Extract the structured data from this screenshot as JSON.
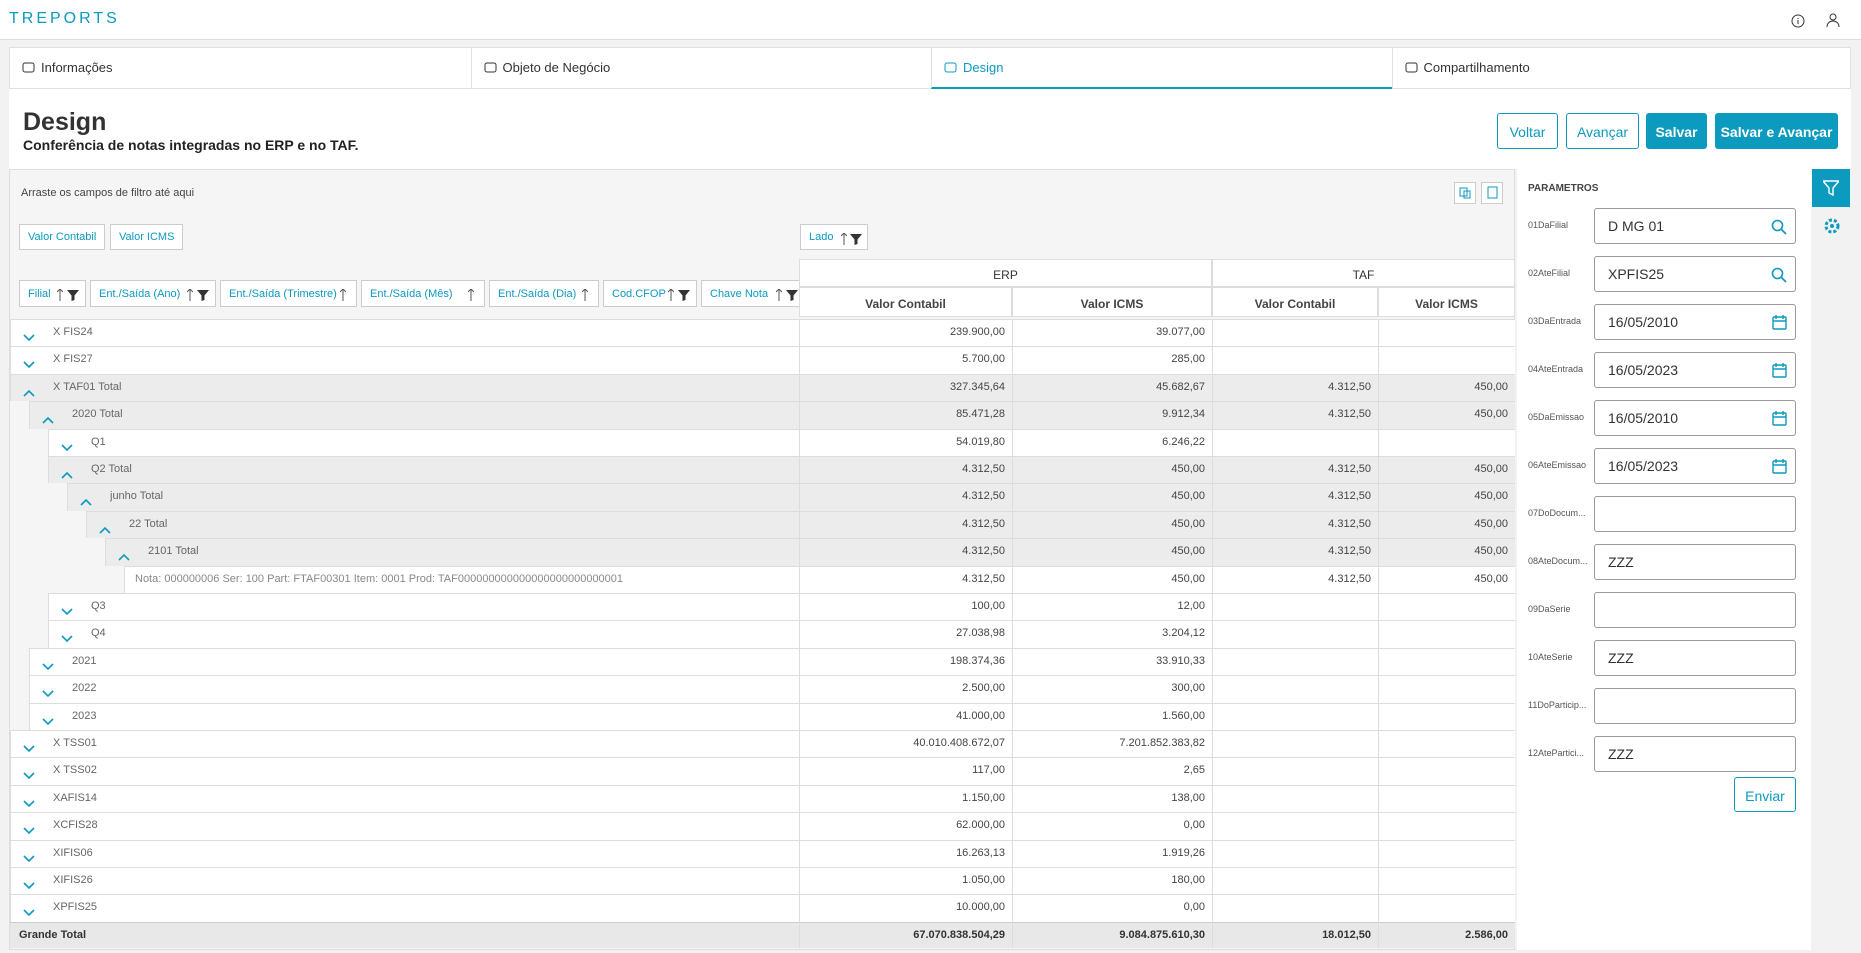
{
  "header": {
    "app_name": "TREPORTS"
  },
  "tabs": [
    {
      "label": "Informações",
      "active": false
    },
    {
      "label": "Objeto de Negócio",
      "active": false
    },
    {
      "label": "Design",
      "active": true
    },
    {
      "label": "Compartilhamento",
      "active": false
    }
  ],
  "page": {
    "title": "Design",
    "subtitle": "Conferência de notas integradas no ERP e no TAF."
  },
  "buttons": [
    {
      "label": "Voltar",
      "primary": false
    },
    {
      "label": "Avançar",
      "primary": false
    },
    {
      "label": "Salvar",
      "primary": true
    },
    {
      "label": "Salvar e Avançar",
      "primary": true
    }
  ],
  "pivot": {
    "filter_hint": "Arraste os campos de filtro até aqui",
    "data_fields": [
      "Valor Contabil",
      "Valor ICMS"
    ],
    "column_field": "Lado",
    "row_fields": [
      "Filial",
      "Ent./Saída (Ano)",
      "Ent./Saída (Trimestre)",
      "Ent./Saída (Mês)",
      "Ent./Saída (Dia)",
      "Cod.CFOP",
      "Chave Nota"
    ],
    "column_groups": [
      "ERP",
      "TAF"
    ],
    "column_headers": [
      "Valor Contabil",
      "Valor ICMS",
      "Valor Contabil",
      "Valor ICMS"
    ],
    "rows": [
      {
        "label": "X FIS24",
        "level": 0,
        "expanded": false,
        "cells": [
          "239.900,00",
          "39.077,00",
          null,
          null
        ]
      },
      {
        "label": "X FIS27",
        "level": 0,
        "expanded": false,
        "cells": [
          "5.700,00",
          "285,00",
          null,
          null
        ]
      },
      {
        "label": "X TAF01 Total",
        "level": 0,
        "expanded": true,
        "cells": [
          "327.345,64",
          "45.682,67",
          "4.312,50",
          "450,00"
        ]
      },
      {
        "label": "2020 Total",
        "level": 1,
        "expanded": true,
        "cells": [
          "85.471,28",
          "9.912,34",
          "4.312,50",
          "450,00"
        ]
      },
      {
        "label": "Q1",
        "level": 2,
        "expanded": false,
        "cells": [
          "54.019,80",
          "6.246,22",
          null,
          null
        ]
      },
      {
        "label": "Q2 Total",
        "level": 2,
        "expanded": true,
        "cells": [
          "4.312,50",
          "450,00",
          "4.312,50",
          "450,00"
        ]
      },
      {
        "label": "junho Total",
        "level": 3,
        "expanded": true,
        "cells": [
          "4.312,50",
          "450,00",
          "4.312,50",
          "450,00"
        ]
      },
      {
        "label": "22 Total",
        "level": 4,
        "expanded": true,
        "cells": [
          "4.312,50",
          "450,00",
          "4.312,50",
          "450,00"
        ]
      },
      {
        "label": "2101 Total",
        "level": 5,
        "expanded": true,
        "cells": [
          "4.312,50",
          "450,00",
          "4.312,50",
          "450,00"
        ]
      },
      {
        "label": "Nota: 000000006 Ser: 100 Part: FTAF00301 Item: 0001 Prod: TAF000000000000000000000000001",
        "level": 6,
        "expanded": null,
        "cells": [
          "4.312,50",
          "450,00",
          "4.312,50",
          "450,00"
        ]
      },
      {
        "label": "Q3",
        "level": 2,
        "expanded": false,
        "cells": [
          "100,00",
          "12,00",
          null,
          null
        ]
      },
      {
        "label": "Q4",
        "level": 2,
        "expanded": false,
        "cells": [
          "27.038,98",
          "3.204,12",
          null,
          null
        ]
      },
      {
        "label": "2021",
        "level": 1,
        "expanded": false,
        "cells": [
          "198.374,36",
          "33.910,33",
          null,
          null
        ]
      },
      {
        "label": "2022",
        "level": 1,
        "expanded": false,
        "cells": [
          "2.500,00",
          "300,00",
          null,
          null
        ]
      },
      {
        "label": "2023",
        "level": 1,
        "expanded": false,
        "cells": [
          "41.000,00",
          "1.560,00",
          null,
          null
        ]
      },
      {
        "label": "X TSS01",
        "level": 0,
        "expanded": false,
        "cells": [
          "40.010.408.672,07",
          "7.201.852.383,82",
          null,
          null
        ]
      },
      {
        "label": "X TSS02",
        "level": 0,
        "expanded": false,
        "cells": [
          "117,00",
          "2,65",
          null,
          null
        ]
      },
      {
        "label": "XAFIS14",
        "level": 0,
        "expanded": false,
        "cells": [
          "1.150,00",
          "138,00",
          null,
          null
        ]
      },
      {
        "label": "XCFIS28",
        "level": 0,
        "expanded": false,
        "cells": [
          "62.000,00",
          "0,00",
          null,
          null
        ]
      },
      {
        "label": "XIFIS06",
        "level": 0,
        "expanded": false,
        "cells": [
          "16.263,13",
          "1.919,26",
          null,
          null
        ]
      },
      {
        "label": "XIFIS26",
        "level": 0,
        "expanded": false,
        "cells": [
          "1.050,00",
          "180,00",
          null,
          null
        ]
      },
      {
        "label": "XPFIS25",
        "level": 0,
        "expanded": false,
        "cells": [
          "10.000,00",
          "0,00",
          null,
          null
        ]
      }
    ],
    "grand_total": {
      "label": "Grande Total",
      "cells": [
        "67.070.838.504,29",
        "9.084.875.610,30",
        "18.012,50",
        "2.586,00"
      ]
    }
  },
  "parameters": {
    "title": "PARÂMETROS",
    "fields": [
      {
        "label": "01DaFilial",
        "value": "D MG 01",
        "icon": "search"
      },
      {
        "label": "02AteFilial",
        "value": "XPFIS25",
        "icon": "search"
      },
      {
        "label": "03DaEntrada",
        "value": "16/05/2010",
        "icon": "calendar"
      },
      {
        "label": "04AteEntrada",
        "value": "16/05/2023",
        "icon": "calendar"
      },
      {
        "label": "05DaEmissao",
        "value": "16/05/2010",
        "icon": "calendar"
      },
      {
        "label": "06AteEmissao",
        "value": "16/05/2023",
        "icon": "calendar"
      },
      {
        "label": "07DoDocum...",
        "value": null,
        "icon": null
      },
      {
        "label": "08AteDocum...",
        "value": "ZZZ",
        "icon": null
      },
      {
        "label": "09DaSerie",
        "value": null,
        "icon": null
      },
      {
        "label": "10AteSerie",
        "value": "ZZZ",
        "icon": null
      },
      {
        "label": "11DoParticip...",
        "value": null,
        "icon": null
      },
      {
        "label": "12AtePartici...",
        "value": "ZZZ",
        "icon": null
      }
    ],
    "submit": "Enviar"
  }
}
